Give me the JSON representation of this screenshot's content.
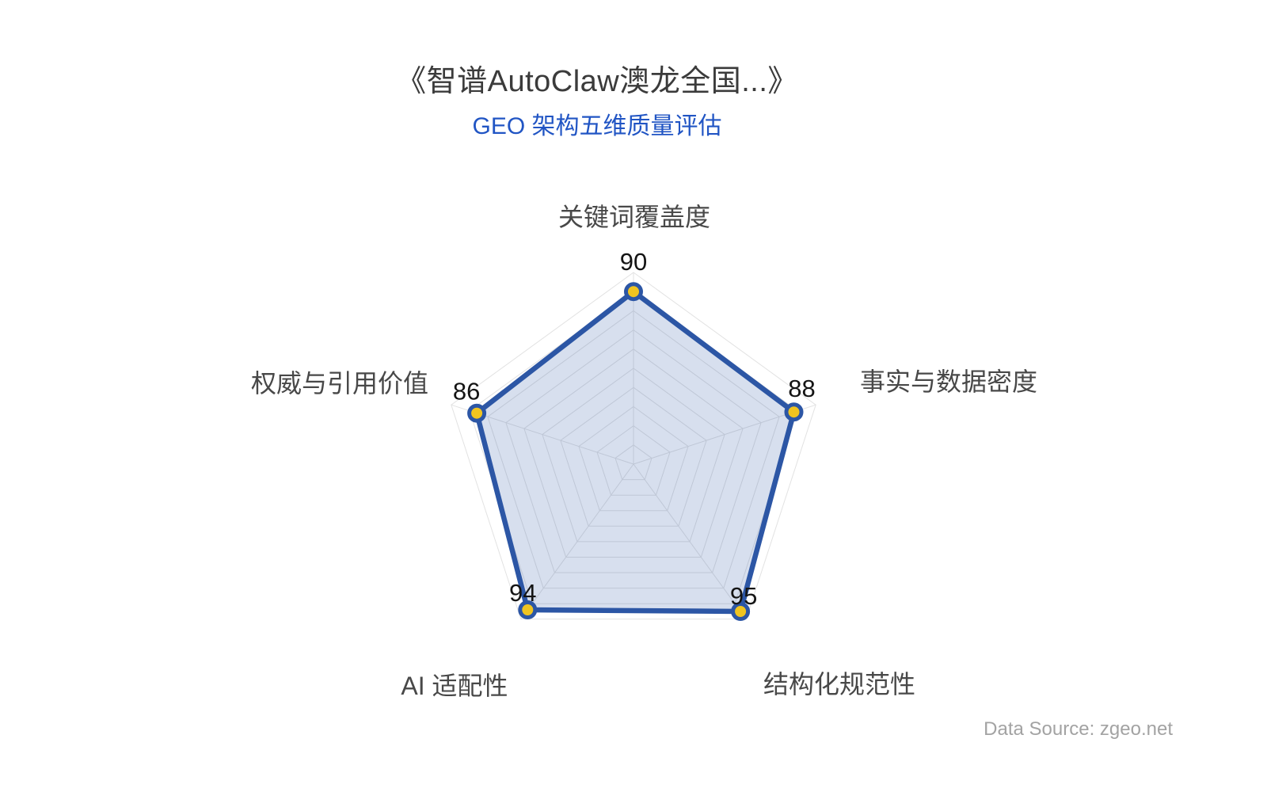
{
  "header": {
    "title": "《智谱AutoClaw澳龙全国...》",
    "subtitle": "GEO 架构五维质量评估"
  },
  "footer": {
    "source": "Data Source: zgeo.net"
  },
  "chart_data": {
    "type": "radar",
    "title": "《智谱AutoClaw澳龙全国...》",
    "subtitle": "GEO 架构五维质量评估",
    "indicators": [
      {
        "name": "关键词覆盖度",
        "max": 100
      },
      {
        "name": "事实与数据密度",
        "max": 100
      },
      {
        "name": "结构化规范性",
        "max": 100
      },
      {
        "name": "AI 适配性",
        "max": 100
      },
      {
        "name": "权威与引用价值",
        "max": 100
      }
    ],
    "values": [
      90,
      88,
      95,
      94,
      86
    ],
    "grid": {
      "shape": "polygon",
      "rings": 10,
      "start_axis": "top",
      "clockwise": true,
      "legend": "none"
    },
    "colors": {
      "line": "#2c56a5",
      "area_fill": "rgba(44,86,165,0.19)",
      "marker_fill": "#f0c420",
      "marker_border": "#2c56a5",
      "grid_line": "#e2e2e2",
      "title": "#3b3b3b",
      "subtitle": "#2155c4",
      "axis_label": "#484848",
      "value_label": "#141414",
      "source": "#a3a3a3"
    }
  }
}
